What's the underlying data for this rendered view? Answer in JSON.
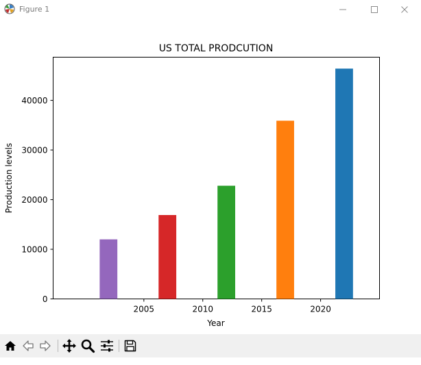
{
  "window": {
    "title": "Figure 1",
    "controls": {
      "minimize": "—",
      "maximize": "☐",
      "close": "✕"
    }
  },
  "toolbar": {
    "buttons": [
      "home-icon",
      "back-arrow-icon",
      "forward-arrow-icon",
      "pan-icon",
      "zoom-icon",
      "configure-subplots-icon",
      "save-icon"
    ]
  },
  "chart_data": {
    "type": "bar",
    "title": "US TOTAL PRODCUTION",
    "xlabel": "Year",
    "ylabel": "Production levels",
    "x": [
      2002,
      2007,
      2012,
      2017,
      2022
    ],
    "values": [
      12000,
      16900,
      22800,
      35900,
      46400
    ],
    "colors": [
      "#9467bd",
      "#d62728",
      "#2ca02c",
      "#ff7f0e",
      "#1f77b4"
    ],
    "bar_width_years": 1.5,
    "xlim": [
      1997.3,
      2025.0
    ],
    "ylim": [
      0,
      48700
    ],
    "xticks": [
      2005,
      2010,
      2015,
      2020
    ],
    "yticks": [
      0,
      10000,
      20000,
      30000,
      40000
    ],
    "grid": false,
    "legend": "none"
  }
}
